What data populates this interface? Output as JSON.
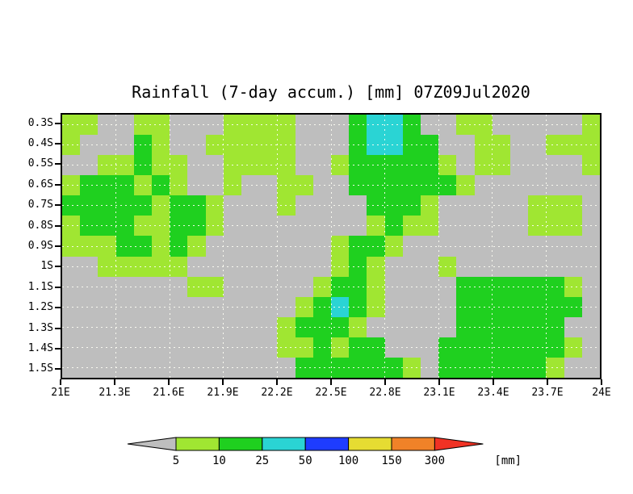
{
  "chart": {
    "title": "Rainfall (7-day accum.) [mm] 07Z09Jul2020"
  },
  "chart_data": {
    "type": "heatmap",
    "title": "Rainfall (7-day accum.) [mm] 07Z09Jul2020",
    "x_ticks": [
      "21E",
      "21.3E",
      "21.6E",
      "21.9E",
      "22.2E",
      "22.5E",
      "22.8E",
      "23.1E",
      "23.4E",
      "23.7E",
      "24E"
    ],
    "y_ticks": [
      "0.3S",
      "0.4S",
      "0.5S",
      "0.6S",
      "0.7S",
      "0.8S",
      "0.9S",
      "1S",
      "1.1S",
      "1.2S",
      "1.3S",
      "1.4S",
      "1.5S"
    ],
    "x_range_deg_east": [
      21.0,
      24.0
    ],
    "y_range_deg_south": [
      0.3,
      1.5
    ],
    "cell_size_deg": 0.1,
    "grid_on": true,
    "palette": {
      "G": "#bebebe",
      "L": "#a0e632",
      "D": "#1fd01f",
      "C": "#2ad4d4"
    },
    "palette_meaning": {
      "G": "< 5 mm",
      "L": "5-10 mm",
      "D": "10-25 mm",
      "C": "25-50 mm"
    },
    "grid_rows_top_to_bottom": [
      "LLGGLLGGGLLLLGGGDCCDGGLLGGGGGL",
      "LGGGDLGGLLLLLGGGDCCDDGGLLGGLLL",
      "GGLLDLLGGLLLLGGLDDDDDLGLLGGGGL",
      "LDDDLDLGGLGGLLGGDDDDDDLGGGGGGG",
      "DDDDDLDDLGGGLGGGGDDDLGGGGGLLLG",
      "LDDDLLDDLGGGGGGGGLDLLGGGGGLLLG",
      "LLLDDLDLGGGGGGGLDDLGGGGGGGGGGG",
      "GGLLLLLGGGGGGGGLDLGGGLGGGGGGGG",
      "GGGGGGGLLGGGGGLDDLGGGGDDDDDDLG",
      "GGGGGGGGGGGGGLDCDLGGGGDDDDDDDG",
      "GGGGGGGGGGGGLDDDLGGGGGDDDDDDGG",
      "GGGGGGGGGGGGLLDLDDGGGDDDDDDDLG",
      "GGGGGGGGGGGGGDDDDDDLGDDDDDDLGG"
    ],
    "legend": {
      "segments": [
        {
          "shape": "left-arrow",
          "color": "#bebebe",
          "range": "< 5"
        },
        {
          "shape": "box",
          "color": "#a0e632",
          "range": "5-10"
        },
        {
          "shape": "box",
          "color": "#1fd01f",
          "range": "10-25"
        },
        {
          "shape": "box",
          "color": "#2ad4d4",
          "range": "25-50"
        },
        {
          "shape": "box",
          "color": "#1e3cff",
          "range": "50-100"
        },
        {
          "shape": "box",
          "color": "#e6dc32",
          "range": "100-150"
        },
        {
          "shape": "box",
          "color": "#f08228",
          "range": "150-300"
        },
        {
          "shape": "right-arrow",
          "color": "#f03224",
          "range": "> 300"
        }
      ],
      "labels": [
        "5",
        "10",
        "25",
        "50",
        "100",
        "150",
        "300"
      ],
      "unit": "[mm]"
    }
  }
}
